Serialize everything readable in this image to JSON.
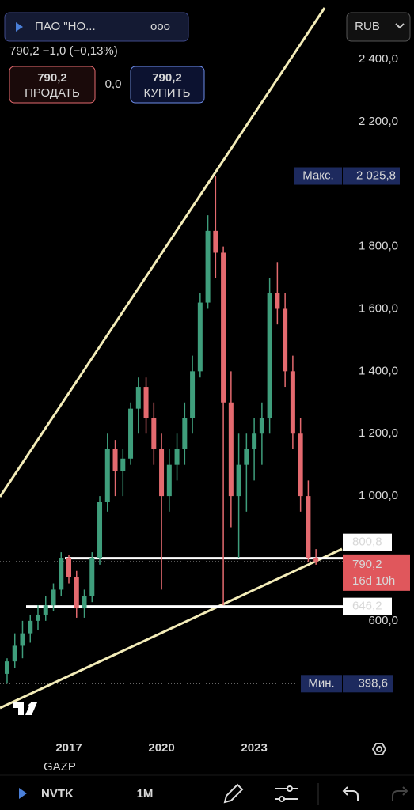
{
  "header": {
    "symbol": "ПАО \"НО...",
    "menu": "ooo",
    "price_line": "790,2  −1,0 (−0,13%)",
    "sell": {
      "price": "790,2",
      "label": "ПРОДАТЬ"
    },
    "spread": "0,0",
    "buy": {
      "price": "790,2",
      "label": "КУПИТЬ"
    },
    "currency": "RUB"
  },
  "chart_data": {
    "type": "candlestick",
    "x": [
      2015.0,
      2015.25,
      2015.5,
      2015.75,
      2016.0,
      2016.25,
      2016.5,
      2016.75,
      2017.0,
      2017.25,
      2017.5,
      2017.75,
      2018.0,
      2018.25,
      2018.5,
      2018.75,
      2019.0,
      2019.25,
      2019.5,
      2019.75,
      2020.0,
      2020.25,
      2020.5,
      2020.75,
      2021.0,
      2021.25,
      2021.5,
      2021.75,
      2022.0,
      2022.25,
      2022.5,
      2022.75,
      2023.0,
      2023.25,
      2023.5,
      2023.75,
      2024.0,
      2024.25,
      2024.5,
      2024.75,
      2025.0
    ],
    "open": [
      430,
      470,
      520,
      560,
      600,
      620,
      650,
      700,
      800,
      740,
      640,
      680,
      800,
      980,
      1150,
      1080,
      1120,
      1280,
      1350,
      1250,
      1150,
      1000,
      1100,
      1150,
      1250,
      1400,
      1620,
      1850,
      1780,
      1300,
      1000,
      1100,
      1150,
      1200,
      1250,
      1650,
      1600,
      1400,
      1200,
      1000,
      800
    ],
    "high": [
      480,
      560,
      600,
      620,
      650,
      680,
      720,
      820,
      810,
      760,
      700,
      820,
      1000,
      1200,
      1180,
      1150,
      1300,
      1380,
      1380,
      1300,
      1200,
      1150,
      1200,
      1300,
      1450,
      1650,
      1900,
      2025.8,
      1800,
      1400,
      1200,
      1200,
      1250,
      1300,
      1700,
      1750,
      1650,
      1450,
      1250,
      1050,
      830
    ],
    "low": [
      398.6,
      450,
      480,
      530,
      570,
      600,
      630,
      680,
      720,
      610,
      610,
      660,
      780,
      950,
      1000,
      1000,
      1100,
      1200,
      1200,
      1100,
      700,
      950,
      1050,
      1100,
      1200,
      1380,
      1600,
      1700,
      650,
      900,
      800,
      950,
      1050,
      1100,
      1200,
      1550,
      1350,
      1150,
      950,
      790,
      780
    ],
    "close": [
      470,
      520,
      560,
      600,
      620,
      650,
      700,
      800,
      740,
      640,
      680,
      800,
      980,
      1150,
      1080,
      1120,
      1280,
      1350,
      1250,
      1150,
      1000,
      1100,
      1150,
      1250,
      1400,
      1620,
      1850,
      1780,
      1300,
      1000,
      1100,
      1150,
      1200,
      1250,
      1650,
      1600,
      1400,
      1200,
      1000,
      800,
      790.2
    ],
    "up_color": "#3f9e7c",
    "down_color": "#e46a6f",
    "xlim": [
      2014.77,
      2025.97
    ],
    "xticks": [
      2017,
      2020,
      2023
    ],
    "ylim": [
      232,
      2590
    ],
    "yticks": [
      {
        "value": 600,
        "label": "600,0"
      },
      {
        "value": 1000,
        "label": "1 000,0"
      },
      {
        "value": 1200,
        "label": "1 200,0"
      },
      {
        "value": 1400,
        "label": "1 400,0"
      },
      {
        "value": 1600,
        "label": "1 600,0"
      },
      {
        "value": 1800,
        "label": "1 800,0"
      },
      {
        "value": 2200,
        "label": "2 200,0"
      },
      {
        "value": 2400,
        "label": "2 400,0"
      }
    ],
    "max": {
      "name": "Макс.",
      "value": 2025.8,
      "label": "2 025,8"
    },
    "min": {
      "name": "Мин.",
      "value": 398.6,
      "label": "398,6"
    },
    "levels": [
      {
        "value": 800.8,
        "label": "800,8"
      },
      {
        "value": 646.2,
        "label": "646,2"
      }
    ],
    "last": {
      "value": 790.2,
      "label": "790,2",
      "countdown": "16d 10h"
    }
  },
  "toolbar": {
    "symbol": "NVTK",
    "interval": "1M",
    "watermark": "GAZP"
  }
}
